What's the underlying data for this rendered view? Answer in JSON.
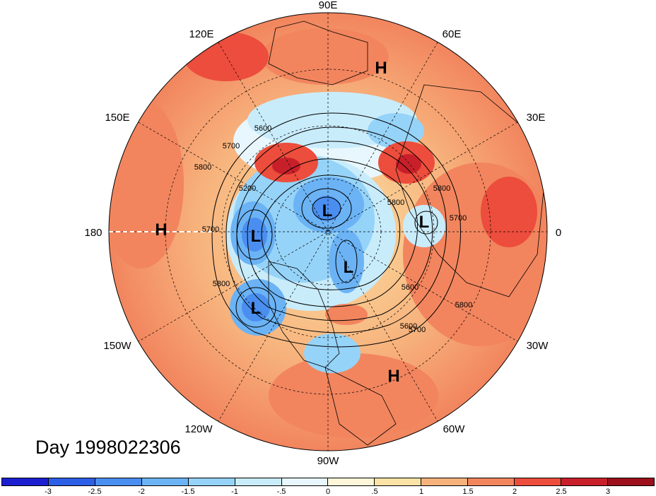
{
  "map": {
    "projection": "north polar stereographic",
    "longitude_labels": [
      "90E",
      "60E",
      "30E",
      "0",
      "30W",
      "60W",
      "90W",
      "120W",
      "150W",
      "180",
      "150E",
      "120E"
    ],
    "contour_labels": [
      "5800",
      "5700",
      "5600",
      "5200",
      "5700",
      "5800",
      "5800",
      "5700",
      "5600",
      "5600",
      "5800",
      "5800",
      "5700"
    ],
    "pressure_centers": [
      {
        "type": "H",
        "label": "H"
      },
      {
        "type": "H",
        "label": "H"
      },
      {
        "type": "H",
        "label": "H"
      },
      {
        "type": "L",
        "label": "L"
      },
      {
        "type": "L",
        "label": "L"
      },
      {
        "type": "L",
        "label": "L"
      },
      {
        "type": "L",
        "label": "L"
      },
      {
        "type": "L",
        "label": "L"
      }
    ]
  },
  "title": {
    "day": "Day 1998022306"
  },
  "colorbar": {
    "tick_labels": [
      "-3",
      "-2.5",
      "-2",
      "-1.5",
      "-1",
      "-.5",
      "0",
      ".5",
      "1",
      "1.5",
      "2",
      "2.5",
      "3"
    ],
    "colors": [
      "#1c1fd0",
      "#2d5ee6",
      "#4a8ef0",
      "#6bb3f5",
      "#96d3f8",
      "#c9ecfb",
      "#e8f7fd",
      "#fdf6d8",
      "#fbe3a5",
      "#f7b27c",
      "#f2855e",
      "#ec4d3c",
      "#c8202a",
      "#9c0f1b"
    ]
  }
}
